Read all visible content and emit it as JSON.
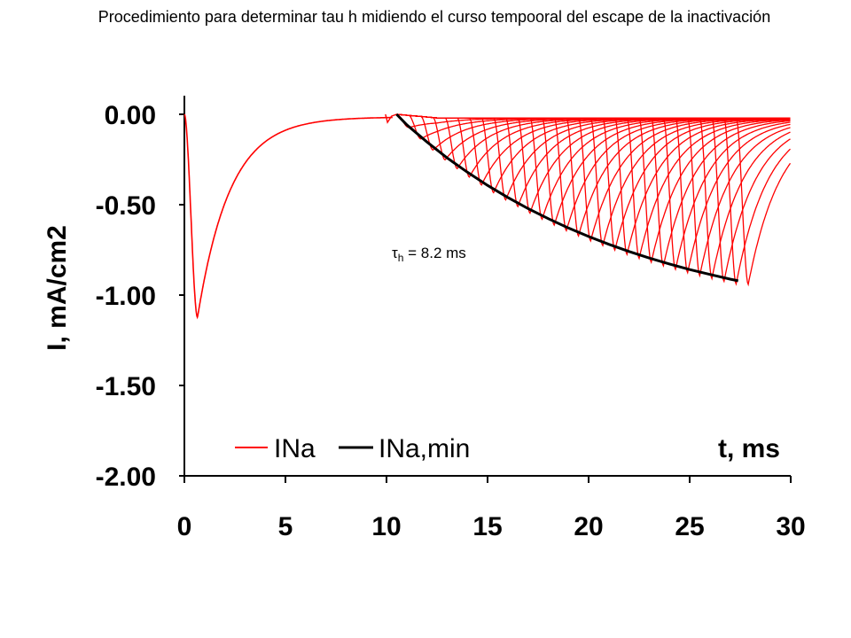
{
  "page": {
    "title": "Procedimiento para determinar tau h midiendo el curso tempooral del escape de la inactivación"
  },
  "chart_data": {
    "type": "line",
    "title": "Procedimiento para determinar tau h midiendo el curso tempooral del escape de la inactivación",
    "xlabel": "t, ms",
    "ylabel": "I, mA/cm2",
    "xlim": [
      0,
      30
    ],
    "ylim": [
      -2.0,
      0.05
    ],
    "x_ticks": [
      "0",
      "5",
      "10",
      "15",
      "20",
      "25",
      "30"
    ],
    "x_tick_values": [
      0,
      5,
      10,
      15,
      20,
      25,
      30
    ],
    "y_ticks": [
      "0.00",
      "-0.50",
      "-1.00",
      "-1.50",
      "-2.00"
    ],
    "y_tick_values": [
      0,
      -0.5,
      -1,
      -1.5,
      -2
    ],
    "grid": false,
    "legend": {
      "placement": "bottom",
      "entries": [
        "INa",
        "INa,min"
      ]
    },
    "annotation": {
      "symbol": "τ",
      "subscript": "h",
      "text": " = 8.2 ms",
      "x": 10.2,
      "y": -0.77
    },
    "first_pulse": {
      "onset": 0,
      "peak_t": 0.65,
      "peak": -1.11,
      "decay_tau": 1.6
    },
    "test_pulses": {
      "onsets": [
        10.5,
        11.1,
        11.7,
        12.3,
        12.9,
        13.5,
        14.1,
        14.7,
        15.3,
        15.9,
        16.5,
        17.1,
        17.7,
        18.3,
        18.9,
        19.5,
        20.1,
        20.7,
        21.3,
        21.9,
        22.5,
        23.1,
        23.7,
        24.3,
        24.9,
        25.5,
        26.1,
        26.7,
        27.3
      ],
      "time_to_peak": 0.6
    },
    "series": [
      {
        "name": "INa",
        "color": "#ff0000"
      },
      {
        "name": "INa,min",
        "color": "#000000",
        "x": [
          10.5,
          11.0,
          12.0,
          13.0,
          14.0,
          15.0,
          16.0,
          17.0,
          18.0,
          19.0,
          20.0,
          21.0,
          22.0,
          23.0,
          24.0,
          25.0,
          26.0,
          27.0,
          27.4
        ],
        "y": [
          0.0,
          -0.058,
          -0.153,
          -0.241,
          -0.32,
          -0.393,
          -0.46,
          -0.521,
          -0.577,
          -0.629,
          -0.676,
          -0.719,
          -0.759,
          -0.795,
          -0.828,
          -0.859,
          -0.886,
          -0.912,
          -0.921
        ]
      }
    ]
  }
}
